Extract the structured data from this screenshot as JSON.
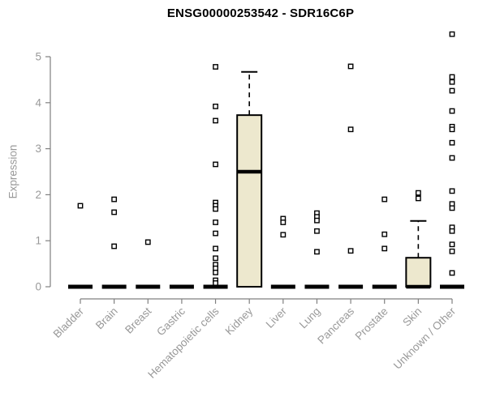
{
  "title": "ENSG00000253542 - SDR16C6P",
  "chart_data": {
    "type": "boxplot",
    "title": "ENSG00000253542 - SDR16C6P",
    "xlabel": "",
    "ylabel": "Expression",
    "ylim": [
      0,
      5.6
    ],
    "yticks": [
      0,
      1,
      2,
      3,
      4,
      5
    ],
    "grid": false,
    "legend": false,
    "categories": [
      "Bladder",
      "Brain",
      "Breast",
      "Gastric",
      "Hematopoietic cells",
      "Kidney",
      "Liver",
      "Lung",
      "Pancreas",
      "Prostate",
      "Skin",
      "Unknown / Other"
    ],
    "series": [
      {
        "category": "Bladder",
        "q1": 0,
        "median": 0,
        "q3": 0,
        "whisker_low": 0,
        "whisker_high": 0,
        "outliers": [
          1.76
        ]
      },
      {
        "category": "Brain",
        "q1": 0,
        "median": 0,
        "q3": 0,
        "whisker_low": 0,
        "whisker_high": 0,
        "outliers": [
          1.9,
          1.62,
          0.88
        ]
      },
      {
        "category": "Breast",
        "q1": 0,
        "median": 0,
        "q3": 0,
        "whisker_low": 0,
        "whisker_high": 0,
        "outliers": [
          0.97
        ]
      },
      {
        "category": "Gastric",
        "q1": 0,
        "median": 0,
        "q3": 0,
        "whisker_low": 0,
        "whisker_high": 0,
        "outliers": []
      },
      {
        "category": "Hematopoietic cells",
        "q1": 0,
        "median": 0,
        "q3": 0,
        "whisker_low": 0,
        "whisker_high": 0,
        "outliers": [
          4.78,
          3.92,
          3.61,
          2.66,
          1.83,
          1.76,
          1.69,
          1.4,
          1.16,
          0.83,
          0.62,
          0.48,
          0.4,
          0.31,
          0.14,
          0.08
        ]
      },
      {
        "category": "Kidney",
        "q1": 0,
        "median": 2.5,
        "q3": 3.73,
        "whisker_low": 0,
        "whisker_high": 4.67,
        "outliers": []
      },
      {
        "category": "Liver",
        "q1": 0,
        "median": 0,
        "q3": 0,
        "whisker_low": 0,
        "whisker_high": 0,
        "outliers": [
          1.48,
          1.4,
          1.13
        ]
      },
      {
        "category": "Lung",
        "q1": 0,
        "median": 0,
        "q3": 0,
        "whisker_low": 0,
        "whisker_high": 0,
        "outliers": [
          1.6,
          1.52,
          1.44,
          1.21,
          0.76
        ]
      },
      {
        "category": "Pancreas",
        "q1": 0,
        "median": 0,
        "q3": 0,
        "whisker_low": 0,
        "whisker_high": 0,
        "outliers": [
          4.79,
          3.42,
          0.78
        ]
      },
      {
        "category": "Prostate",
        "q1": 0,
        "median": 0,
        "q3": 0,
        "whisker_low": 0,
        "whisker_high": 0,
        "outliers": [
          1.9,
          1.14,
          0.83
        ]
      },
      {
        "category": "Skin",
        "q1": 0,
        "median": 0,
        "q3": 0.63,
        "whisker_low": 0,
        "whisker_high": 1.43,
        "outliers": [
          2.04,
          1.92
        ]
      },
      {
        "category": "Unknown / Other",
        "q1": 0,
        "median": 0,
        "q3": 0,
        "whisker_low": 0,
        "whisker_high": 0,
        "outliers": [
          5.49,
          4.56,
          4.45,
          4.26,
          3.82,
          3.48,
          3.42,
          3.13,
          2.8,
          2.08,
          1.8,
          1.71,
          1.29,
          1.21,
          0.92,
          0.77,
          0.3
        ]
      }
    ],
    "colors": {
      "box_fill": "#ede8ce",
      "box_border": "#000000",
      "median": "#000000",
      "outlier": "#000000",
      "axis_line": "#808080",
      "axis_text": "#999999",
      "title_color": "#000000",
      "background": "#ffffff"
    }
  }
}
